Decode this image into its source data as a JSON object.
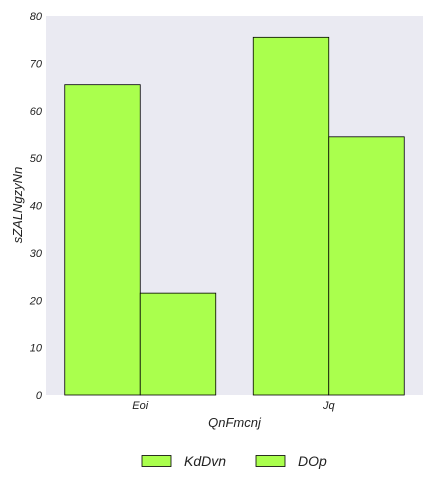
{
  "chart_data": {
    "type": "bar",
    "categories": [
      "Eoi",
      "Jq"
    ],
    "series": [
      {
        "name": "KdDvn",
        "values": [
          65.5,
          75.5
        ]
      },
      {
        "name": "DOp",
        "values": [
          21.5,
          54.5
        ]
      }
    ],
    "xlabel": "QnFmcnj",
    "ylabel": "sZALNgzyNn",
    "ylim": [
      0,
      80
    ],
    "yticks": [
      0,
      10,
      20,
      30,
      40,
      50,
      60,
      70,
      80
    ],
    "grid": false,
    "legend_position": "bottom-center",
    "colors": {
      "plot_background": "#eaeaf2",
      "bar_fill": "#aaff4d",
      "bar_edge": "#000000"
    }
  }
}
